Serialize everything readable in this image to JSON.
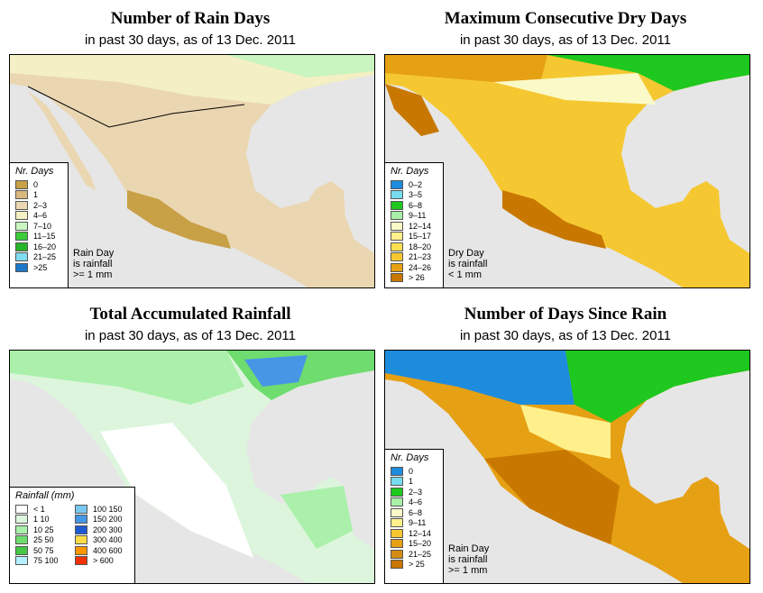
{
  "panels": [
    {
      "title": "Number of Rain Days",
      "subtitle": "in past 30 days, as of  13 Dec. 2011",
      "legend_title": "Nr. Days",
      "legend": [
        {
          "label": "0",
          "color": "#c8a046"
        },
        {
          "label": "1",
          "color": "#d8b87e"
        },
        {
          "label": "2–3",
          "color": "#ead7b2"
        },
        {
          "label": "4–6",
          "color": "#f4efc4"
        },
        {
          "label": "7–10",
          "color": "#c8f5c0"
        },
        {
          "label": "11–15",
          "color": "#3ccc3c"
        },
        {
          "label": "16–20",
          "color": "#28b428"
        },
        {
          "label": "21–25",
          "color": "#80dcf0"
        },
        {
          "label": ">25",
          "color": "#1e78c8"
        }
      ],
      "note": [
        "Rain Day",
        "is rainfall",
        ">= 1 mm"
      ]
    },
    {
      "title": "Maximum Consecutive Dry Days",
      "subtitle": "in past 30 days, as of  13 Dec. 2011",
      "legend_title": "Nr. Days",
      "legend": [
        {
          "label": "0–2",
          "color": "#1e8cdc"
        },
        {
          "label": "3–5",
          "color": "#78dcf0"
        },
        {
          "label": "6–8",
          "color": "#1ec81e"
        },
        {
          "label": "9–11",
          "color": "#a8f0a8"
        },
        {
          "label": "12–14",
          "color": "#fafac8"
        },
        {
          "label": "15–17",
          "color": "#fff08c"
        },
        {
          "label": "18–20",
          "color": "#ffe050"
        },
        {
          "label": "21–23",
          "color": "#f5c832"
        },
        {
          "label": "24–26",
          "color": "#e6a014"
        },
        {
          "label": "> 26",
          "color": "#c87800"
        }
      ],
      "note": [
        "Dry Day",
        "is rainfall",
        "< 1 mm"
      ]
    },
    {
      "title": "Total Accumulated Rainfall",
      "subtitle": "in past 30 days, as of  13 Dec. 2011",
      "legend_title": "Rainfall (mm)",
      "legend": [
        {
          "label": "< 1",
          "color": "#ffffff"
        },
        {
          "label": "1    10",
          "color": "#dcf5dc"
        },
        {
          "label": "10    25",
          "color": "#aaf0aa"
        },
        {
          "label": "25    50",
          "color": "#6edc6e"
        },
        {
          "label": "50    75",
          "color": "#46c846"
        },
        {
          "label": "75  100",
          "color": "#b4f0ff"
        },
        {
          "label": "100  150",
          "color": "#78c8f0"
        },
        {
          "label": "150  200",
          "color": "#4696e6"
        },
        {
          "label": "200  300",
          "color": "#1e5ad2"
        },
        {
          "label": "300  400",
          "color": "#ffdc46"
        },
        {
          "label": "400  600",
          "color": "#ff9600"
        },
        {
          "label": "> 600",
          "color": "#f03200"
        }
      ],
      "note": []
    },
    {
      "title": "Number of Days Since Rain",
      "subtitle": "in past 30 days, as of  13 Dec. 2011",
      "legend_title": "Nr. Days",
      "legend": [
        {
          "label": "0",
          "color": "#1e8cdc"
        },
        {
          "label": "1",
          "color": "#78dcf0"
        },
        {
          "label": "2–3",
          "color": "#1ec81e"
        },
        {
          "label": "4–6",
          "color": "#a8f0a8"
        },
        {
          "label": "6–8",
          "color": "#fafac8"
        },
        {
          "label": "9–11",
          "color": "#fff08c"
        },
        {
          "label": "12–14",
          "color": "#f5c832"
        },
        {
          "label": "15–20",
          "color": "#e6a014"
        },
        {
          "label": "21–25",
          "color": "#d28c14"
        },
        {
          "label": "> 25",
          "color": "#c87800"
        }
      ],
      "note": [
        "Rain Day",
        "is rainfall",
        ">= 1 mm"
      ]
    }
  ]
}
